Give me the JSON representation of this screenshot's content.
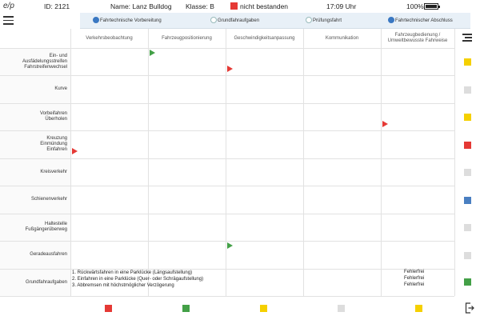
{
  "status_bar": {
    "logo": "e/p",
    "id_text": "ID: 2121",
    "name_text": "Name: Lanz Bulldog",
    "class_text": "Klasse: B",
    "result_text": "nicht bestanden",
    "result_color": "#e53935",
    "time": "17:09 Uhr",
    "battery_text": "100%",
    "battery_level": 1.0
  },
  "phases": [
    {
      "label": "Fahrtechnische Vorbereitung",
      "active": true
    },
    {
      "label": "Grundfahraufgaben",
      "active": false
    },
    {
      "label": "Prüfungsfahrt",
      "active": false
    },
    {
      "label": "Fahrtechnischer Abschluss",
      "active": true
    }
  ],
  "columns": [
    "Verkehrsbeobachtung",
    "Fahrzeugpositionierung",
    "Geschwindigkeitsanpassung",
    "Kommunikation",
    "Fahrzeugbedienung /\nUmweltbewusste Fahrweise"
  ],
  "rows": [
    {
      "label": "Ein- und\nAusfädelungsstreifen\nFahrstreifenwechsel",
      "status_color": "#f5d000"
    },
    {
      "label": "Kurve",
      "status_color": "#dddddd"
    },
    {
      "label": "Vorbeifahren\nÜberholen",
      "status_color": "#f5d000"
    },
    {
      "label": "Kreuzung\nEinmündung\nEinfahren",
      "status_color": "#e53935"
    },
    {
      "label": "Kreisverkehr",
      "status_color": "#dddddd"
    },
    {
      "label": "Schienenverkehr",
      "status_color": "#4a7fc1"
    },
    {
      "label": "Haltestelle\nFußgängerüberweg",
      "status_color": "#dddddd"
    },
    {
      "label": "Geradeausfahren",
      "status_color": "#dddddd"
    },
    {
      "label": "Grundfahraufgaben",
      "status_color": "#43a047"
    }
  ],
  "flags": [
    {
      "row": 0,
      "col": 1,
      "color": "green",
      "pos": "top"
    },
    {
      "row": 0,
      "col": 2,
      "color": "red",
      "pos": "bottom"
    },
    {
      "row": 2,
      "col": 4,
      "color": "red",
      "pos": "bottom"
    },
    {
      "row": 3,
      "col": 0,
      "color": "red",
      "pos": "bottom"
    },
    {
      "row": 7,
      "col": 2,
      "color": "green",
      "pos": "top"
    }
  ],
  "tasks": [
    "1.  Rückwärtsfahren in eine Parklücke (Längsaufstellung)",
    "2.  Einfahren in eine Parklücke (Quer- oder Schrägaufstellung)",
    "3.  Abbremsen mit höchstmöglicher Verzögerung"
  ],
  "task_results": [
    "Fehlerfrei",
    "Fehlerfrei",
    "Fehlerfrei"
  ],
  "footer_colors": [
    "#e53935",
    "#43a047",
    "#f5d000",
    "#dddddd",
    "#f5d000"
  ],
  "icons": {
    "menu": "hamburger-icon",
    "list": "list-icon",
    "exit": "exit-icon"
  }
}
